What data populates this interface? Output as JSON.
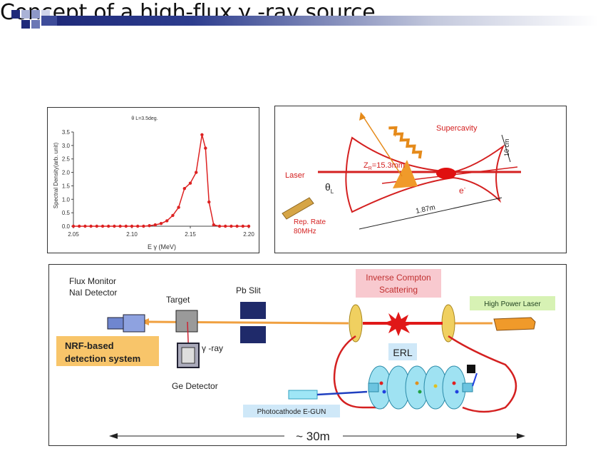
{
  "slide": {
    "title": "Concept of a high-flux γ -ray source",
    "colors": {
      "accent": "#dd2222",
      "header_bar": "#1f2a7a"
    }
  },
  "chart_data": {
    "type": "line",
    "title": "θ L=3.5deg.",
    "xlabel": "E γ (MeV)",
    "ylabel": "Spectral Density(arb. unit)",
    "xlim": [
      2.05,
      2.2
    ],
    "ylim": [
      0.0,
      3.5
    ],
    "x_ticks": [
      "2.05",
      "2.10",
      "2.15",
      "2.20"
    ],
    "y_ticks": [
      "0.0",
      "0.5",
      "1.0",
      "1.5",
      "2.0",
      "2.5",
      "3.0",
      "3.5"
    ],
    "grid": false,
    "series": [
      {
        "color": "#dd2222",
        "x": [
          2.05,
          2.055,
          2.06,
          2.065,
          2.07,
          2.075,
          2.08,
          2.085,
          2.09,
          2.095,
          2.1,
          2.105,
          2.11,
          2.115,
          2.12,
          2.125,
          2.13,
          2.135,
          2.14,
          2.145,
          2.15,
          2.155,
          2.16,
          2.163,
          2.166,
          2.17,
          2.175,
          2.18,
          2.185,
          2.19,
          2.195,
          2.2
        ],
        "y": [
          0,
          0,
          0,
          0,
          0,
          0,
          0,
          0,
          0,
          0,
          0,
          0,
          0,
          0.02,
          0.05,
          0.1,
          0.2,
          0.4,
          0.7,
          1.4,
          1.6,
          2.0,
          3.4,
          2.9,
          0.9,
          0.05,
          0,
          0,
          0,
          0,
          0,
          0
        ]
      }
    ]
  },
  "diagram1": {
    "gamma": "γ",
    "supercavity": "Supercavity",
    "zr": "Z",
    "zr_sub": "R",
    "zr_val": "=15.3mm",
    "laser": "Laser",
    "theta": "θ",
    "theta_sub": "L",
    "electron": "e",
    "electron_sup": "-",
    "distance": "1.87m",
    "height": "10 cm",
    "rep_rate_1": "Rep. Rate",
    "rep_rate_2": "80MHz"
  },
  "diagram2": {
    "flux_monitor_1": "Flux Monitor",
    "flux_monitor_2": "NaI Detector",
    "target": "Target",
    "pb_slit": "Pb Slit",
    "inverse_compton_1": "Inverse Compton",
    "inverse_compton_2": "Scattering",
    "high_power_laser": "High Power Laser",
    "gamma_ray": "γ -ray",
    "nrf_1": "NRF-based",
    "nrf_2": "detection system",
    "erl": "ERL",
    "ge_detector": "Ge Detector",
    "egun": "Photocathode E-GUN",
    "length": "~ 30m"
  }
}
